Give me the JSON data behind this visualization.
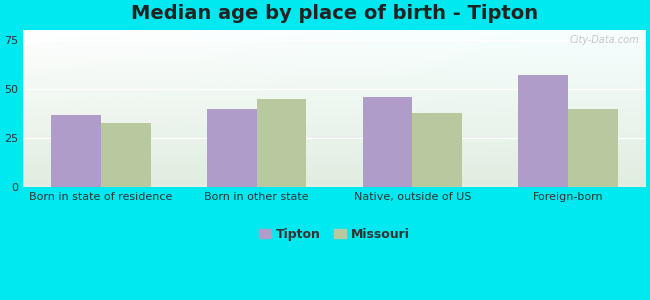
{
  "title": "Median age by place of birth - Tipton",
  "categories": [
    "Born in state of residence",
    "Born in other state",
    "Native, outside of US",
    "Foreign-born"
  ],
  "tipton_values": [
    37,
    40,
    46,
    57
  ],
  "missouri_values": [
    33,
    45,
    38,
    40
  ],
  "tipton_color": "#b09cc8",
  "missouri_color": "#b8c9a0",
  "background_outer": "#00e8f0",
  "ylim": [
    0,
    80
  ],
  "yticks": [
    0,
    25,
    50,
    75
  ],
  "bar_width": 0.32,
  "legend_labels": [
    "Tipton",
    "Missouri"
  ],
  "title_fontsize": 14,
  "tick_fontsize": 8,
  "legend_fontsize": 9,
  "watermark": "City-Data.com",
  "grid_color": "#e0e0e0",
  "grad_top": "#f0f8f0",
  "grad_bottom": "#c5dfc5"
}
